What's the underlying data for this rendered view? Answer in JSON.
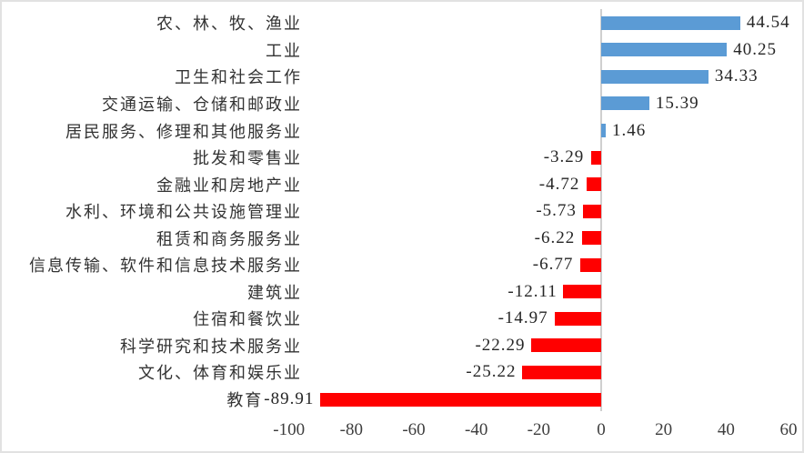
{
  "chart_data": {
    "type": "bar",
    "orientation": "horizontal",
    "title": "",
    "xlabel": "",
    "ylabel": "",
    "categories": [
      "农、林、牧、渔业",
      "工业",
      "卫生和社会工作",
      "交通运输、仓储和邮政业",
      "居民服务、修理和其他服务业",
      "批发和零售业",
      "金融业和房地产业",
      "水利、环境和公共设施管理业",
      "租赁和商务服务业",
      "信息传输、软件和信息技术服务业",
      "建筑业",
      "住宿和餐饮业",
      "科学研究和技术服务业",
      "文化、体育和娱乐业",
      "教育"
    ],
    "values": [
      44.54,
      40.25,
      34.33,
      15.39,
      1.46,
      -3.29,
      -4.72,
      -5.73,
      -6.22,
      -6.77,
      -12.11,
      -14.97,
      -22.29,
      -25.22,
      -89.91
    ],
    "value_labels": [
      "44.54",
      "40.25",
      "34.33",
      "15.39",
      "1.46",
      "-3.29",
      "-4.72",
      "-5.73",
      "-6.22",
      "-6.77",
      "-12.11",
      "-14.97",
      "-22.29",
      "-25.22",
      "-89.91"
    ],
    "x_ticks": [
      -100,
      -80,
      -60,
      -40,
      -20,
      0,
      20,
      40,
      60
    ],
    "xlim": [
      -100,
      60
    ],
    "grid": false,
    "legend": false,
    "data_labels_position": "outside-end",
    "positive_color": "#5B9BD5",
    "negative_color": "#FF0000",
    "axis_line_color": "#CFCFCF",
    "label_color": "#333333",
    "tick_color": "#3D3D3D"
  }
}
